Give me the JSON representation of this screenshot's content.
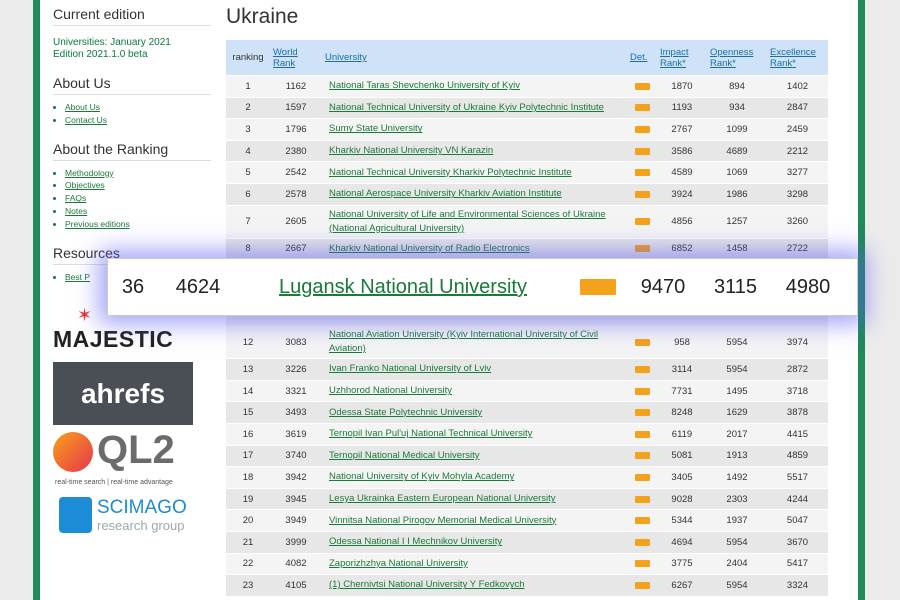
{
  "sidebar": {
    "current_heading": "Current edition",
    "edition_lines": [
      "Universities: January 2021",
      "Edition 2021.1.0 beta"
    ],
    "sections": [
      {
        "heading": "About Us",
        "links": [
          "About Us",
          "Contact Us"
        ]
      },
      {
        "heading": "About the Ranking",
        "links": [
          "Methodology",
          "Objectives",
          "FAQs",
          "Notes",
          "Previous editions"
        ]
      },
      {
        "heading": "Resources",
        "links": [
          "Best P"
        ]
      }
    ],
    "logos": {
      "majestic": "MAJESTIC",
      "ahrefs": "ahrefs",
      "ql2": "QL2",
      "ql2_tagline": "real-time search | real-time advantage",
      "scimago": "SCIMAGO",
      "scimago_sub": "research group"
    }
  },
  "page_title": "Ukraine",
  "table": {
    "headers": [
      "ranking",
      "World Rank",
      "University",
      "Det.",
      "Impact Rank*",
      "Openness Rank*",
      "Excellence Rank*"
    ],
    "rows": [
      [
        1,
        1162,
        "National Taras Shevchenko University of Kyiv",
        1870,
        894,
        1402
      ],
      [
        2,
        1597,
        "National Technical University of Ukraine Kyiv Polytechnic Institute",
        1193,
        934,
        2847
      ],
      [
        3,
        1796,
        "Sumy State University",
        2767,
        1099,
        2459
      ],
      [
        4,
        2380,
        "Kharkiv National University VN Karazin",
        3586,
        4689,
        2212
      ],
      [
        5,
        2542,
        "National Technical University Kharkiv Polytechnic Institute",
        4589,
        1069,
        3277
      ],
      [
        6,
        2578,
        "National Aerospace University Kharkiv Aviation Institute",
        3924,
        1986,
        3298
      ],
      [
        7,
        2605,
        "National University of Life and Environmental Sciences of Ukraine (National Agricultural University)",
        4856,
        1257,
        3260
      ],
      [
        8,
        2667,
        "Kharkiv National University of Radio Electronics",
        6852,
        1458,
        2722
      ],
      [
        12,
        3083,
        "National Aviation University (Kyiv International University of Civil Aviation)",
        958,
        5954,
        3974
      ],
      [
        13,
        3226,
        "Ivan Franko National University of Lviv",
        3114,
        5954,
        2872
      ],
      [
        14,
        3321,
        "Uzhhorod National University",
        7731,
        1495,
        3718
      ],
      [
        15,
        3493,
        "Odessa State Polytechnic University",
        8248,
        1629,
        3878
      ],
      [
        16,
        3619,
        "Ternopil Ivan Pul'uj National Technical University",
        6119,
        2017,
        4415
      ],
      [
        17,
        3740,
        "Ternopil National Medical University",
        5081,
        1913,
        4859
      ],
      [
        18,
        3942,
        "National University of Kyiv Mohyla Academy",
        3405,
        1492,
        5517
      ],
      [
        19,
        3945,
        "Lesya Ukrainka Eastern European National University",
        9028,
        2303,
        4244
      ],
      [
        20,
        3949,
        "Vinnitsa National Pirogov Memorial Medical University",
        5344,
        1937,
        5047
      ],
      [
        21,
        3999,
        "Odessa National I I Mechnikov University",
        4694,
        5954,
        3670
      ],
      [
        22,
        4082,
        "Zaporizhzhya National University",
        3775,
        2404,
        5417
      ],
      [
        23,
        4105,
        "(1) Chernivtsi National University Y Fedkovych",
        6267,
        5954,
        3324
      ]
    ]
  },
  "highlight": {
    "row": [
      36,
      4624,
      "Lugansk National University",
      9470,
      3115,
      4980
    ]
  }
}
